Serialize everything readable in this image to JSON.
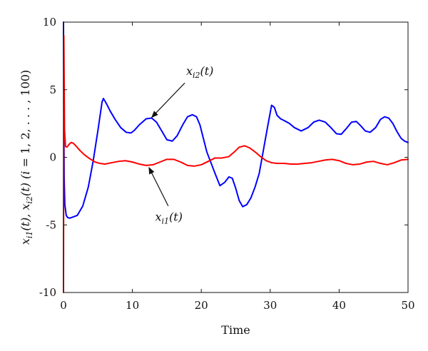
{
  "chart_data": {
    "type": "line",
    "xlabel": "Time",
    "ylabel": "x_i1(t), x_i2(t) (i = 1, 2, ..., 100)",
    "ylabel_parts": {
      "a_var": "x",
      "a_sub": "i1",
      "a_arg": "(t), ",
      "b_var": "x",
      "b_sub": "i2",
      "b_arg": "(t) (",
      "i_var": "i",
      "rest": " = 1, 2, . . . , 100)"
    },
    "xlim": [
      0,
      50
    ],
    "ylim": [
      -10,
      10
    ],
    "xticks": [
      0,
      10,
      20,
      30,
      40,
      50
    ],
    "yticks": [
      -10,
      -5,
      0,
      5,
      10
    ],
    "grid": false,
    "series": [
      {
        "name": "x_i2(t)",
        "color": "#0000ff",
        "x": [
          0,
          0.05,
          0.1,
          0.2,
          0.4,
          0.6,
          0.9,
          1.2,
          2,
          2.8,
          3.6,
          4.3,
          5,
          5.6,
          5.8,
          6.2,
          6.8,
          7.5,
          8.3,
          9.1,
          9.8,
          10.3,
          11,
          12,
          12.8,
          13.5,
          14.2,
          15,
          15.8,
          16.5,
          17.3,
          18,
          18.7,
          19.3,
          19.8,
          20.3,
          20.8,
          21.4,
          22,
          22.7,
          23.4,
          24,
          24.5,
          25,
          25.5,
          26,
          26.6,
          27.2,
          27.8,
          28.4,
          29,
          29.6,
          30.2,
          30.6,
          31,
          31.5,
          32.1,
          32.8,
          33.5,
          34.5,
          35.5,
          36.3,
          37.1,
          38,
          38.8,
          39.6,
          40.3,
          41,
          41.8,
          42.5,
          43.1,
          43.8,
          44.5,
          45.3,
          46,
          46.6,
          47.2,
          47.8,
          48.4,
          49,
          49.5,
          50
        ],
        "y": [
          10,
          3,
          -1.5,
          -3.5,
          -4.3,
          -4.45,
          -4.5,
          -4.45,
          -4.3,
          -3.6,
          -2.2,
          -0.3,
          2,
          4.1,
          4.35,
          4,
          3.4,
          2.8,
          2.2,
          1.85,
          1.8,
          2,
          2.4,
          2.85,
          2.9,
          2.6,
          2,
          1.3,
          1.2,
          1.6,
          2.4,
          3,
          3.15,
          3,
          2.4,
          1.4,
          0.4,
          -0.4,
          -1.2,
          -2.1,
          -1.85,
          -1.45,
          -1.55,
          -2.3,
          -3.2,
          -3.65,
          -3.5,
          -3,
          -2.2,
          -1.2,
          0.5,
          2.2,
          3.85,
          3.7,
          3.1,
          2.85,
          2.7,
          2.5,
          2.2,
          1.95,
          2.2,
          2.6,
          2.75,
          2.6,
          2.2,
          1.75,
          1.7,
          2.1,
          2.6,
          2.65,
          2.35,
          1.95,
          1.85,
          2.2,
          2.8,
          3,
          2.9,
          2.5,
          1.9,
          1.4,
          1.2,
          1.1
        ]
      },
      {
        "name": "x_i1(t)",
        "color": "#ff0000",
        "x": [
          0,
          0.05,
          0.15,
          0.3,
          0.5,
          0.8,
          1.1,
          1.4,
          1.8,
          2.3,
          3,
          3.8,
          4.6,
          5.3,
          6,
          7,
          8,
          9,
          10,
          11,
          12,
          13,
          14,
          15,
          16,
          17,
          18,
          19,
          20,
          21,
          22,
          23,
          24,
          24.8,
          25.5,
          26.3,
          27,
          27.8,
          28.6,
          29.4,
          30.2,
          31,
          32,
          33,
          34,
          35,
          36,
          37,
          38,
          39,
          40,
          41,
          42,
          43,
          44,
          45,
          46,
          47,
          48,
          49,
          50
        ],
        "y": [
          -10,
          9,
          2,
          0.8,
          0.75,
          0.95,
          1.1,
          1.05,
          0.85,
          0.55,
          0.2,
          -0.1,
          -0.35,
          -0.45,
          -0.5,
          -0.4,
          -0.3,
          -0.25,
          -0.35,
          -0.5,
          -0.6,
          -0.55,
          -0.35,
          -0.15,
          -0.15,
          -0.35,
          -0.6,
          -0.65,
          -0.55,
          -0.3,
          -0.05,
          -0.05,
          0.05,
          0.4,
          0.75,
          0.85,
          0.7,
          0.4,
          0.05,
          -0.25,
          -0.4,
          -0.45,
          -0.45,
          -0.5,
          -0.5,
          -0.45,
          -0.4,
          -0.3,
          -0.2,
          -0.15,
          -0.25,
          -0.45,
          -0.55,
          -0.5,
          -0.35,
          -0.3,
          -0.45,
          -0.55,
          -0.4,
          -0.2,
          -0.15
        ]
      }
    ],
    "annotations": [
      {
        "var": "x",
        "sub": "i2",
        "arg": "(t)",
        "label_pos": [
          17.8,
          6.1
        ],
        "arrow_start": [
          17.6,
          5.5
        ],
        "arrow_end": [
          12.8,
          2.95
        ]
      },
      {
        "var": "x",
        "sub": "i1",
        "arg": "(t)",
        "label_pos": [
          13.3,
          -4.7
        ],
        "arrow_start": [
          15.2,
          -3.6
        ],
        "arrow_end": [
          12.4,
          -0.75
        ]
      }
    ]
  }
}
